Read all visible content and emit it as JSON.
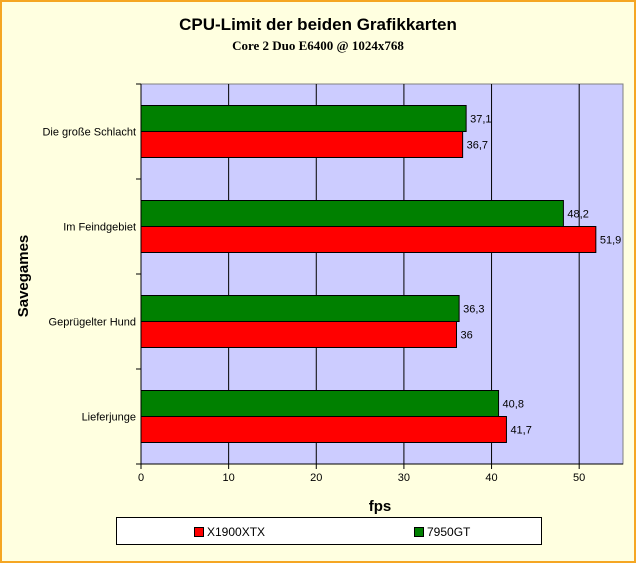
{
  "chart_data": {
    "type": "bar",
    "orientation": "horizontal",
    "title": "CPU-Limit der beiden Grafikkarten",
    "subtitle": "Core 2 Duo E6400 @ 1024x768",
    "xlabel": "fps",
    "ylabel": "Savegames",
    "xlim": [
      0,
      55
    ],
    "xticks": [
      0,
      10,
      20,
      30,
      40,
      50
    ],
    "grid": true,
    "legend_position": "bottom",
    "categories": [
      "Die große Schlacht",
      "Im Feindgebiet",
      "Geprügelter Hund",
      "Lieferjunge"
    ],
    "series": [
      {
        "name": "X1900XTX",
        "color": "#ff0000",
        "values": [
          36.7,
          51.9,
          36,
          41.7
        ],
        "labels": [
          "36,7",
          "51,9",
          "36",
          "41,7"
        ]
      },
      {
        "name": "7950GT",
        "color": "#008000",
        "values": [
          37.1,
          48.2,
          36.3,
          40.8
        ],
        "labels": [
          "37,1",
          "48,2",
          "36,3",
          "40,8"
        ]
      }
    ],
    "plot_background": "#ccccff",
    "page_background": "#ffffe0"
  }
}
